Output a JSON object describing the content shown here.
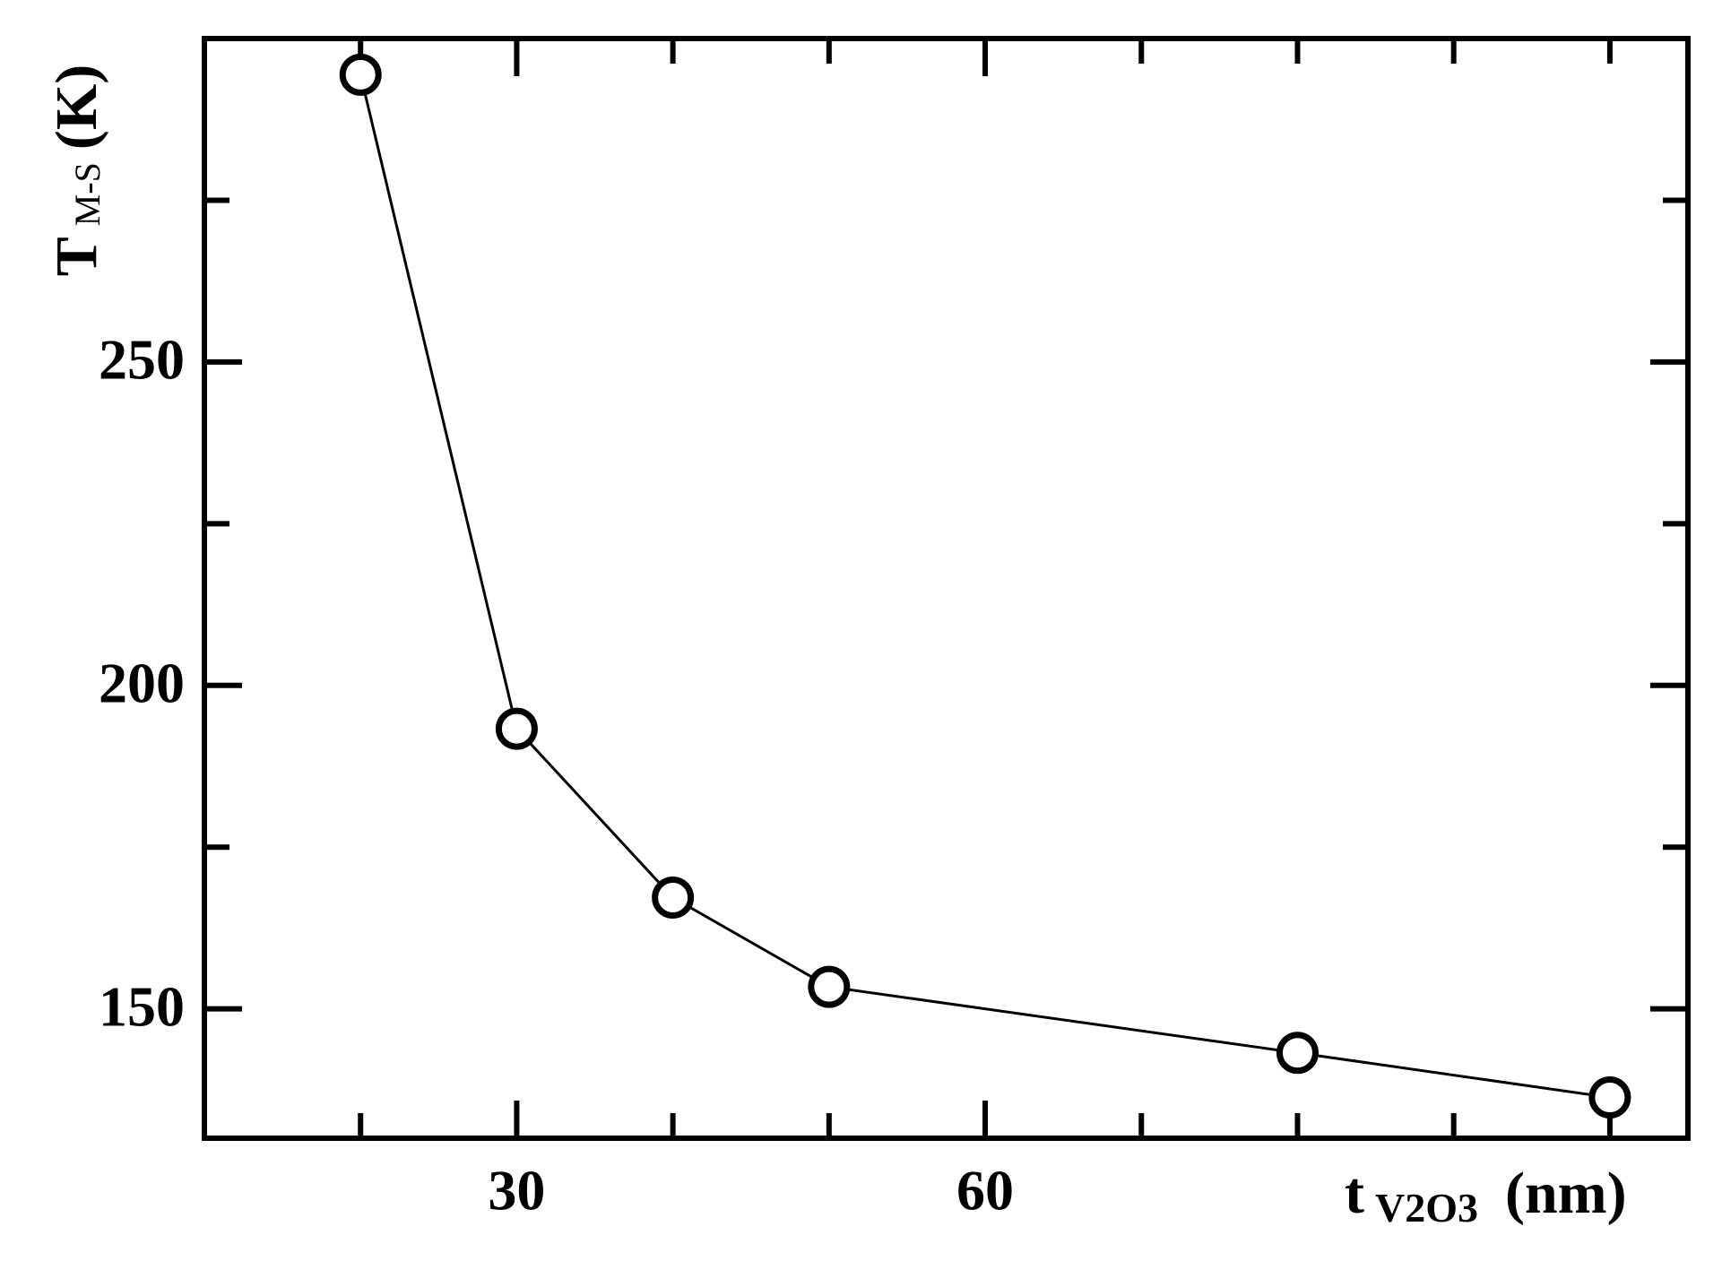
{
  "chart_data": {
    "type": "line",
    "x_label": {
      "main": "t",
      "sub": "V2O3",
      "unit": "(nm)"
    },
    "y_label": {
      "main": "T",
      "sub": "M-S",
      "unit": "(K)"
    },
    "x": [
      20,
      30,
      40,
      50,
      80,
      100
    ],
    "series": [
      {
        "color": "#000000",
        "values": [
          294.4,
          193.3,
          167.2,
          153.4,
          143.2,
          136.3
        ]
      }
    ],
    "xlim": [
      10,
      105
    ],
    "xticks": [
      30,
      60
    ],
    "xminorticks": [
      20,
      40,
      50,
      70,
      80,
      90,
      100
    ],
    "ylim": [
      130,
      300
    ],
    "yticks": [
      150,
      200,
      250
    ],
    "yminorticks": [
      175,
      225,
      275
    ],
    "marker": "open-circle"
  }
}
